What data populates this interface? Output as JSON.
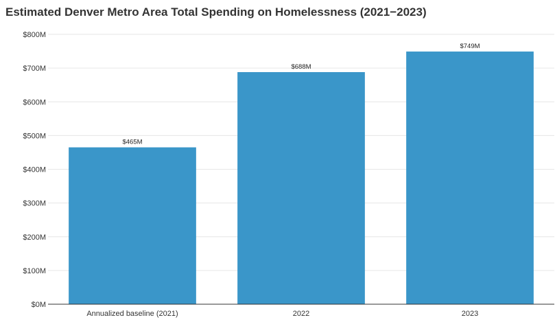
{
  "chart_data": {
    "type": "bar",
    "title": "Estimated Denver Metro Area Total Spending on Homelessness (2021−2023)",
    "categories": [
      "Annualized baseline (2021)",
      "2022",
      "2023"
    ],
    "values": [
      465,
      688,
      749
    ],
    "value_labels": [
      "$465M",
      "$688M",
      "$749M"
    ],
    "xlabel": "",
    "ylabel": "",
    "ylim": [
      0,
      800
    ],
    "y_ticks": [
      0,
      100,
      200,
      300,
      400,
      500,
      600,
      700,
      800
    ],
    "y_tick_labels": [
      "$0M",
      "$100M",
      "$200M",
      "$300M",
      "$400M",
      "$500M",
      "$600M",
      "$700M",
      "$800M"
    ],
    "grid": true,
    "bar_color": "#3a96c9"
  }
}
